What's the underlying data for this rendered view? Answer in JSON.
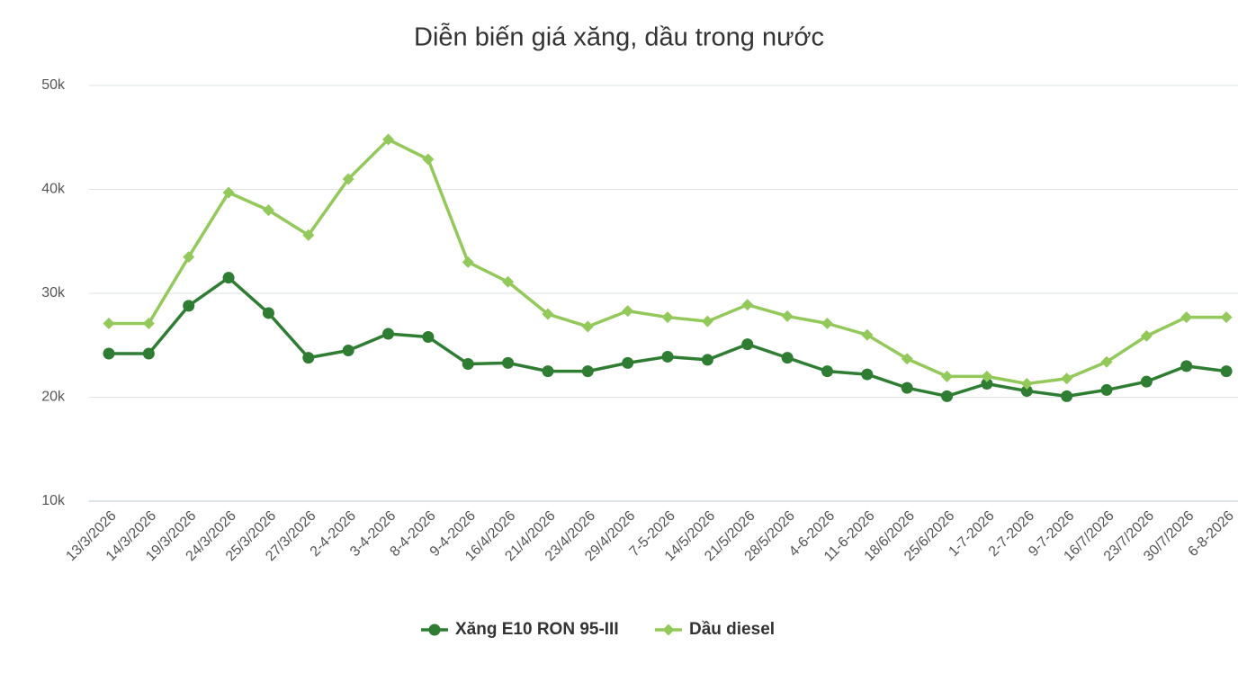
{
  "chart_data": {
    "type": "line",
    "title": "Diễn biến giá xăng, dầu trong nước",
    "categories": [
      "13/3/2026",
      "14/3/2026",
      "19/3/2026",
      "24/3/2026",
      "25/3/2026",
      "27/3/2026",
      "2-4-2026",
      "3-4-2026",
      "8-4-2026",
      "9-4-2026",
      "16/4/2026",
      "21/4/2026",
      "23/4/2026",
      "29/4/2026",
      "7-5-2026",
      "14/5/2026",
      "21/5/2026",
      "28/5/2026",
      "4-6-2026",
      "11-6-2026",
      "18/6/2026",
      "25/6/2026",
      "1-7-2026",
      "2-7-2026",
      "9-7-2026",
      "16/7/2026",
      "23/7/2026",
      "30/7/2026",
      "6-8-2026"
    ],
    "series": [
      {
        "name": "Xăng E10 RON 95-III",
        "color": "#2e7d32",
        "marker": "circle",
        "values": [
          24200,
          24200,
          28800,
          31500,
          28100,
          23800,
          24500,
          26100,
          25800,
          23200,
          23300,
          22500,
          22500,
          23300,
          23900,
          23600,
          25100,
          23800,
          22500,
          22200,
          20900,
          20100,
          21300,
          20600,
          20100,
          20700,
          21500,
          23000,
          22500
        ]
      },
      {
        "name": "Dầu diesel",
        "color": "#93c95a",
        "marker": "diamond",
        "values": [
          27100,
          27100,
          33500,
          39700,
          38000,
          35600,
          41000,
          44800,
          42900,
          33000,
          31100,
          28000,
          26800,
          28300,
          27700,
          27300,
          28900,
          27800,
          27100,
          26000,
          23700,
          22000,
          22000,
          21300,
          21800,
          23400,
          25900,
          27700,
          27700
        ]
      }
    ],
    "ylim": [
      10000,
      50000
    ],
    "yticks": [
      {
        "value": 10000,
        "label": "10k"
      },
      {
        "value": 20000,
        "label": "20k"
      },
      {
        "value": 30000,
        "label": "30k"
      },
      {
        "value": 40000,
        "label": "40k"
      },
      {
        "value": 50000,
        "label": "50k"
      }
    ],
    "grid": true
  }
}
